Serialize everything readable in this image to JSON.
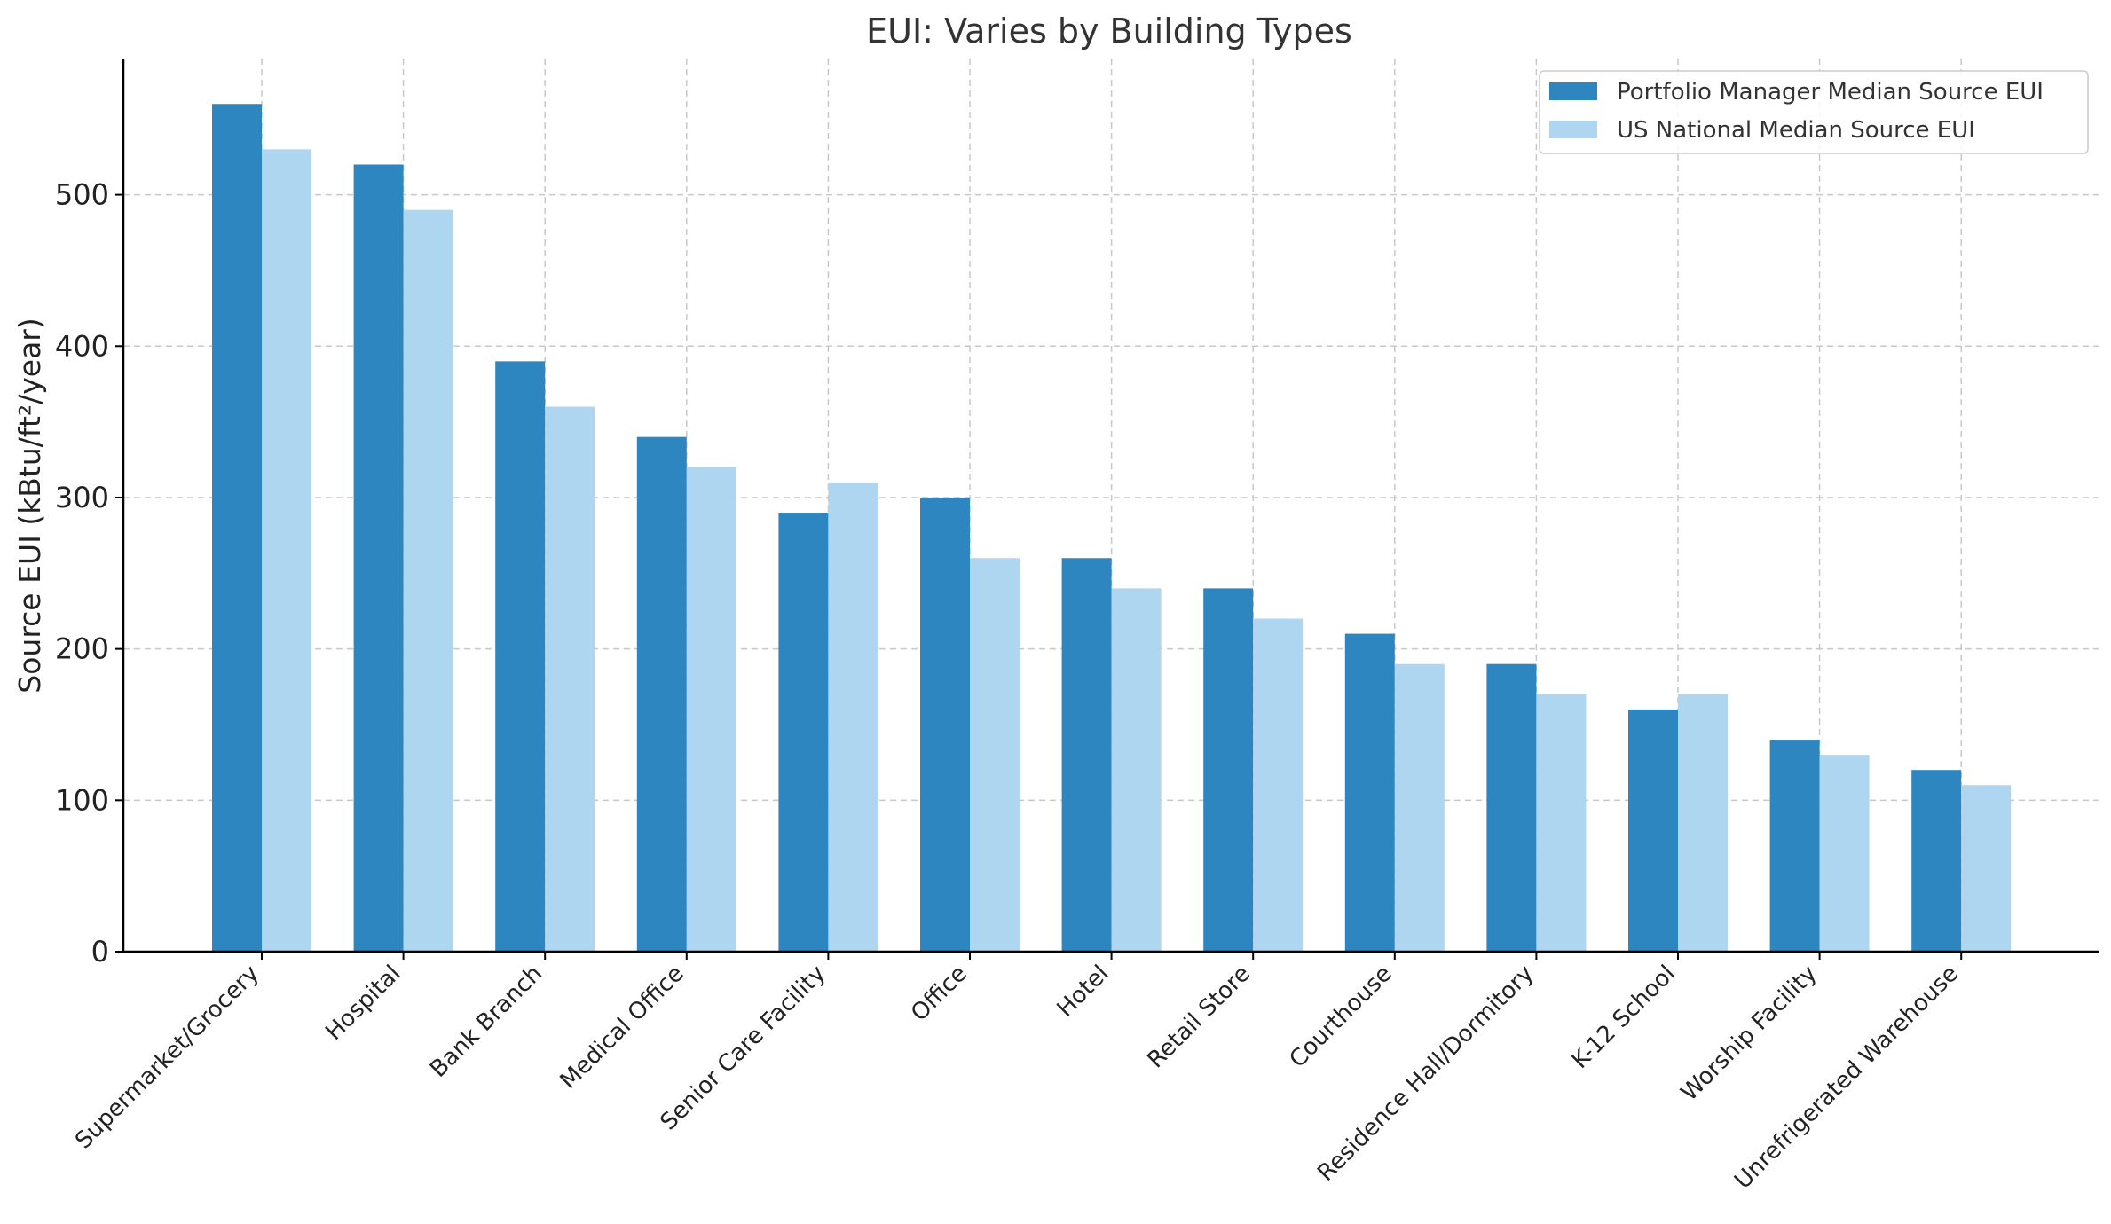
{
  "chart_data": {
    "type": "bar",
    "title": "EUI: Varies by Building Types",
    "xlabel": "",
    "ylabel": "Source EUI (kBtu/ft²/year)",
    "ylim": [
      0,
      590
    ],
    "yticks": [
      0,
      100,
      200,
      300,
      400,
      500
    ],
    "grid": true,
    "legend_position": "top-right",
    "categories": [
      "Supermarket/Grocery",
      "Hospital",
      "Bank Branch",
      "Medical Office",
      "Senior Care Facility",
      "Office",
      "Hotel",
      "Retail Store",
      "Courthouse",
      "Residence Hall/Dormitory",
      "K-12 School",
      "Worship Facility",
      "Unrefrigerated Warehouse"
    ],
    "series": [
      {
        "name": "Portfolio Manager Median Source EUI",
        "color": "#2e86c1",
        "values": [
          560,
          520,
          390,
          340,
          290,
          300,
          260,
          240,
          210,
          190,
          160,
          140,
          120
        ]
      },
      {
        "name": "US National Median Source EUI",
        "color": "#aed6f1",
        "values": [
          530,
          490,
          360,
          320,
          310,
          260,
          240,
          220,
          190,
          170,
          170,
          130,
          110
        ]
      }
    ]
  }
}
